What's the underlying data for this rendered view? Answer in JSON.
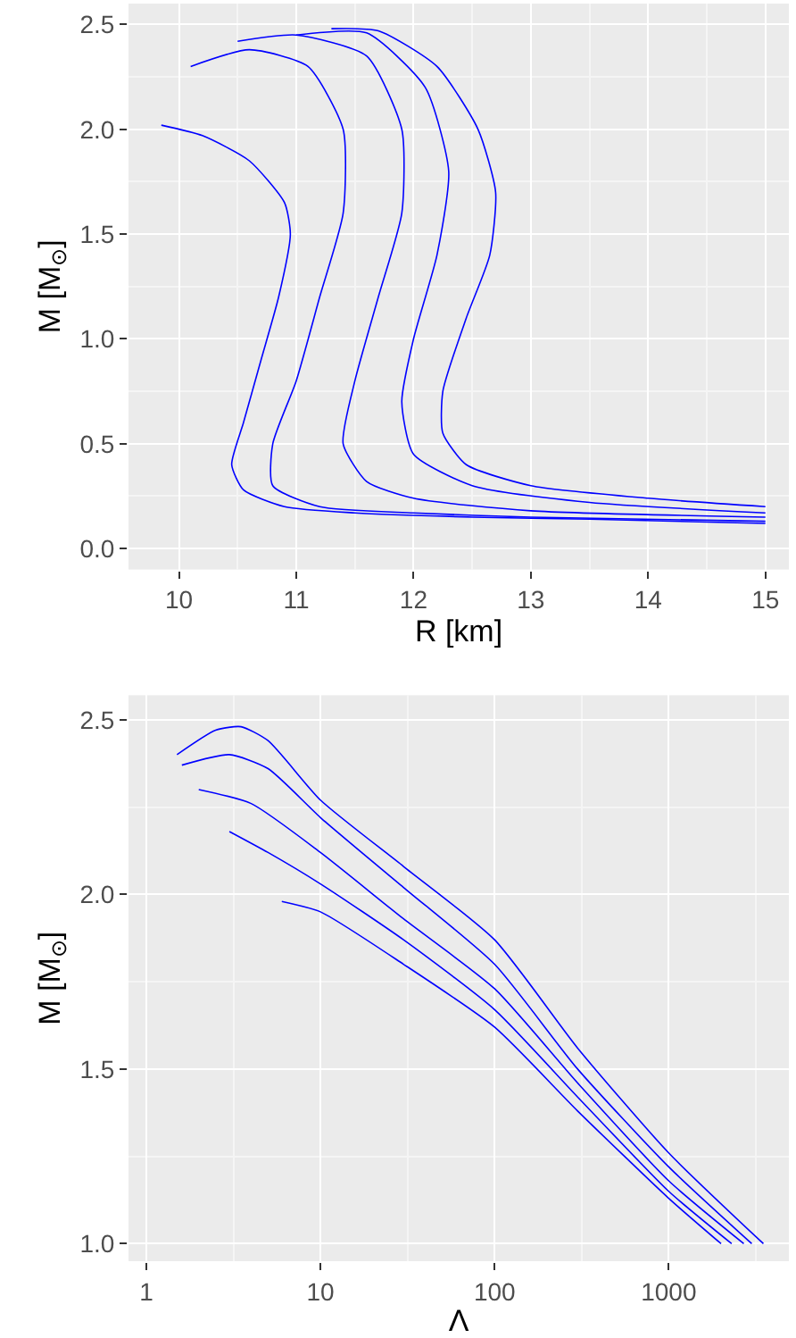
{
  "chart_data": [
    {
      "type": "line",
      "xlabel": "R [km]",
      "ylabel": "M [M$_{⊙}$]",
      "xlim": [
        9.57,
        15.2
      ],
      "ylim": [
        -0.1,
        2.6
      ],
      "xticks": [
        10,
        11,
        12,
        13,
        14,
        15
      ],
      "yticks": [
        {
          "value": 0,
          "label": "0.0"
        },
        0.5,
        {
          "value": 1,
          "label": "1.0"
        },
        1.5,
        {
          "value": 2,
          "label": "2.0"
        },
        2.5
      ],
      "grid": true,
      "marker": "none",
      "line_style": "solid",
      "series": [
        {
          "color": "#0000ff",
          "x": [
            9.85,
            10.2,
            10.6,
            10.9,
            10.95,
            10.85,
            10.7,
            10.55,
            10.45,
            10.55,
            10.9,
            11.5,
            12.5,
            13.5,
            15
          ],
          "values": [
            2.02,
            1.97,
            1.85,
            1.65,
            1.5,
            1.2,
            0.9,
            0.6,
            0.4,
            0.28,
            0.2,
            0.17,
            0.15,
            0.14,
            0.12
          ]
        },
        {
          "color": "#0000ff",
          "x": [
            10.1,
            10.6,
            11.1,
            11.4,
            11.4,
            11.2,
            11.0,
            10.8,
            10.8,
            11.2,
            12.0,
            13.0,
            15.0
          ],
          "values": [
            2.3,
            2.38,
            2.3,
            2.0,
            1.6,
            1.2,
            0.8,
            0.5,
            0.3,
            0.2,
            0.17,
            0.15,
            0.13
          ]
        },
        {
          "color": "#0000ff",
          "x": [
            10.5,
            11.0,
            11.6,
            11.9,
            11.9,
            11.7,
            11.5,
            11.4,
            11.6,
            12.0,
            13.0,
            15.0
          ],
          "values": [
            2.42,
            2.45,
            2.35,
            2.0,
            1.6,
            1.2,
            0.8,
            0.5,
            0.32,
            0.24,
            0.18,
            0.15
          ]
        },
        {
          "color": "#0000ff",
          "x": [
            11.0,
            11.6,
            12.1,
            12.3,
            12.2,
            12.0,
            11.9,
            12.0,
            12.5,
            13.5,
            15.0
          ],
          "values": [
            2.45,
            2.46,
            2.2,
            1.8,
            1.4,
            1.0,
            0.7,
            0.45,
            0.3,
            0.22,
            0.17
          ]
        },
        {
          "color": "#0000ff",
          "x": [
            11.3,
            11.7,
            12.2,
            12.55,
            12.7,
            12.65,
            12.45,
            12.25,
            12.25,
            12.45,
            13.0,
            14.0,
            15.0
          ],
          "values": [
            2.48,
            2.47,
            2.3,
            2.0,
            1.7,
            1.4,
            1.1,
            0.75,
            0.55,
            0.4,
            0.3,
            0.24,
            0.2
          ]
        }
      ]
    },
    {
      "type": "line",
      "xlabel": "Λ",
      "ylabel": "M [M$_{⊙}$]",
      "log": "x",
      "xlim": [
        0.79,
        4900
      ],
      "ylim": [
        0.95,
        2.57
      ],
      "xticks": [
        1,
        10,
        100,
        1000
      ],
      "yticks": [
        {
          "value": 1,
          "label": "1.0"
        },
        1.5,
        {
          "value": 2,
          "label": "2.0"
        },
        2.5
      ],
      "grid": true,
      "marker": "none",
      "line_style": "solid",
      "series": [
        {
          "color": "#0000ff",
          "x": [
            1.5,
            2.5,
            3.5,
            5,
            10,
            30,
            100,
            300,
            1000,
            3500
          ],
          "values": [
            2.4,
            2.47,
            2.48,
            2.44,
            2.27,
            2.08,
            1.87,
            1.56,
            1.26,
            1.0
          ]
        },
        {
          "color": "#0000ff",
          "x": [
            1.6,
            3,
            5,
            10,
            30,
            100,
            300,
            1000,
            3000
          ],
          "values": [
            2.37,
            2.4,
            2.36,
            2.22,
            2.02,
            1.8,
            1.5,
            1.22,
            1.0
          ]
        },
        {
          "color": "#0000ff",
          "x": [
            2,
            4,
            10,
            30,
            100,
            300,
            1000,
            2700
          ],
          "values": [
            2.3,
            2.26,
            2.12,
            1.93,
            1.73,
            1.46,
            1.18,
            1.0
          ]
        },
        {
          "color": "#0000ff",
          "x": [
            3,
            5,
            10,
            30,
            100,
            300,
            1000,
            2300
          ],
          "values": [
            2.18,
            2.12,
            2.03,
            1.87,
            1.67,
            1.42,
            1.15,
            1.0
          ]
        },
        {
          "color": "#0000ff",
          "x": [
            6,
            10,
            30,
            100,
            300,
            1000,
            2000
          ],
          "values": [
            1.98,
            1.95,
            1.8,
            1.62,
            1.38,
            1.13,
            1.0
          ]
        }
      ]
    }
  ]
}
